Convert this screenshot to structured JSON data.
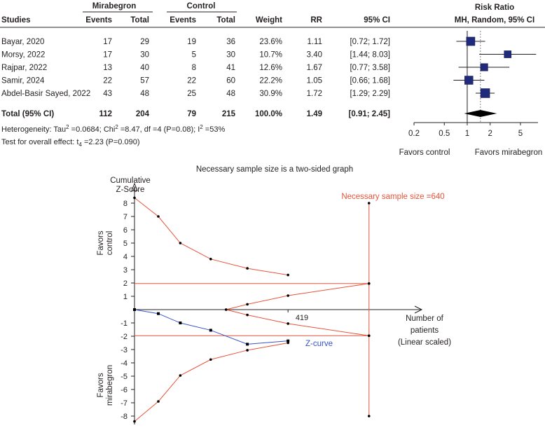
{
  "chart_data": [
    {
      "type": "forest",
      "headers": {
        "studies": "Studies",
        "group1": "Mirabegron",
        "group2": "Control",
        "events": "Events",
        "total": "Total",
        "weight": "Weight",
        "rr": "RR",
        "ci": "95% CI",
        "plot_title": "Risk Ratio",
        "plot_subtitle": "MH, Random, 95% CI"
      },
      "studies": [
        {
          "name": "Bayar, 2020",
          "e1": "17",
          "t1": "29",
          "e2": "19",
          "t2": "36",
          "weight": "23.6%",
          "rr_text": "1.11",
          "ci_text": "[0.72; 1.72]",
          "rr": 1.11,
          "lo": 0.72,
          "hi": 1.72,
          "w": 23.6
        },
        {
          "name": "Morsy, 2022",
          "e1": "17",
          "t1": "30",
          "e2": "5",
          "t2": "30",
          "weight": "10.7%",
          "rr_text": "3.40",
          "ci_text": "[1.44; 8.03]",
          "rr": 3.4,
          "lo": 1.44,
          "hi": 8.03,
          "w": 10.7
        },
        {
          "name": "Rajpar, 2022",
          "e1": "13",
          "t1": "40",
          "e2": "8",
          "t2": "41",
          "weight": "12.6%",
          "rr_text": "1.67",
          "ci_text": "[0.77; 3.58]",
          "rr": 1.67,
          "lo": 0.77,
          "hi": 3.58,
          "w": 12.6
        },
        {
          "name": "Samir, 2024",
          "e1": "22",
          "t1": "57",
          "e2": "22",
          "t2": "60",
          "weight": "22.2%",
          "rr_text": "1.05",
          "ci_text": "[0.66; 1.68]",
          "rr": 1.05,
          "lo": 0.66,
          "hi": 1.68,
          "w": 22.2
        },
        {
          "name": "Abdel-Basir Sayed, 2022",
          "e1": "43",
          "t1": "48",
          "e2": "25",
          "t2": "48",
          "weight": "30.9%",
          "rr_text": "1.72",
          "ci_text": "[1.29; 2.29]",
          "rr": 1.72,
          "lo": 1.29,
          "hi": 2.29,
          "w": 30.9
        }
      ],
      "total": {
        "name": "Total (95% CI)",
        "e1": "112",
        "t1": "204",
        "e2": "79",
        "t2": "215",
        "weight": "100.0%",
        "rr_text": "1.49",
        "ci_text": "[0.91; 2.45]",
        "rr": 1.49,
        "lo": 0.91,
        "hi": 2.45
      },
      "heterogeneity": {
        "prefix": "Heterogeneity: Tau",
        "tau_exp": "2",
        "tau_val": " =0.0684; Chi",
        "chi_exp": "2",
        "chi_val": " =8.47, df =4 (P=0.08); I",
        "i_exp": "2",
        "i_val": " =53%"
      },
      "overall_effect": {
        "prefix": "Test for overall effect: t",
        "sub": "4",
        "suffix": " =2.23 (P=0.090)"
      },
      "axis": {
        "scale": "log",
        "ticks": [
          0.2,
          0.5,
          1,
          2,
          5
        ],
        "tick_labels": [
          "0.2",
          "0.5",
          "1",
          "2",
          "5"
        ],
        "xlim": [
          0.2,
          8.5
        ]
      },
      "favors_left": "Favors control",
      "favors_right": "Favors mirabegron"
    },
    {
      "type": "line",
      "title": "Necessary sample size is a two-sided graph",
      "ylabel_line1": "Cumulative",
      "ylabel_line2": "Z-Score",
      "y_ticks": [
        8,
        7,
        6,
        5,
        4,
        3,
        2,
        1,
        -1,
        -2,
        -3,
        -4,
        -5,
        -6,
        -7,
        -8
      ],
      "y_tick_labels": [
        "8",
        "7",
        "6",
        "5",
        "4",
        "3",
        "2",
        "1",
        "-1",
        "-2",
        "-3",
        "-4",
        "-5",
        "-6",
        "-7",
        "-8"
      ],
      "ylim": [
        -8.5,
        8.5
      ],
      "xlim": [
        0,
        780
      ],
      "xlabel_line1": "Number of",
      "xlabel_line2": "patients",
      "xlabel_line3": "(Linear scaled)",
      "x_marker_value": 419,
      "x_marker_label": "419",
      "favors_upper_line1": "Favors",
      "favors_upper_line2": "control",
      "favors_lower_line1": "Favors",
      "favors_lower_line2": "mirabegron",
      "ris_value": 640,
      "ris_label": "Necessary sample size =640",
      "ris_top": 8.0,
      "ris_bottom": -8.0,
      "conventional_z": 1.96,
      "z_curve_label": "Z-curve",
      "z_curve": {
        "x": [
          0,
          65,
          125,
          208,
          308,
          419
        ],
        "y": [
          0,
          -0.3,
          -1.0,
          -1.55,
          -2.6,
          -2.35
        ]
      },
      "upper_boundary": {
        "x": [
          0,
          65,
          125,
          208,
          308,
          419
        ],
        "y": [
          8.4,
          7.0,
          5.0,
          3.8,
          3.1,
          2.6
        ]
      },
      "lower_boundary": {
        "x": [
          0,
          65,
          125,
          208,
          308,
          419
        ],
        "y": [
          -8.4,
          -6.9,
          -4.95,
          -3.75,
          -3.05,
          -2.5
        ]
      },
      "futility_upper": {
        "x": [
          250,
          308,
          419,
          640
        ],
        "y": [
          0,
          0.4,
          1.05,
          1.96
        ]
      },
      "futility_lower": {
        "x": [
          250,
          308,
          419,
          640
        ],
        "y": [
          0,
          -0.4,
          -1.05,
          -1.96
        ]
      },
      "colors": {
        "boundary": "#e8533a",
        "zcurve": "#3553c9",
        "axis": "#231f20",
        "square": "#1f2a7a"
      }
    }
  ]
}
